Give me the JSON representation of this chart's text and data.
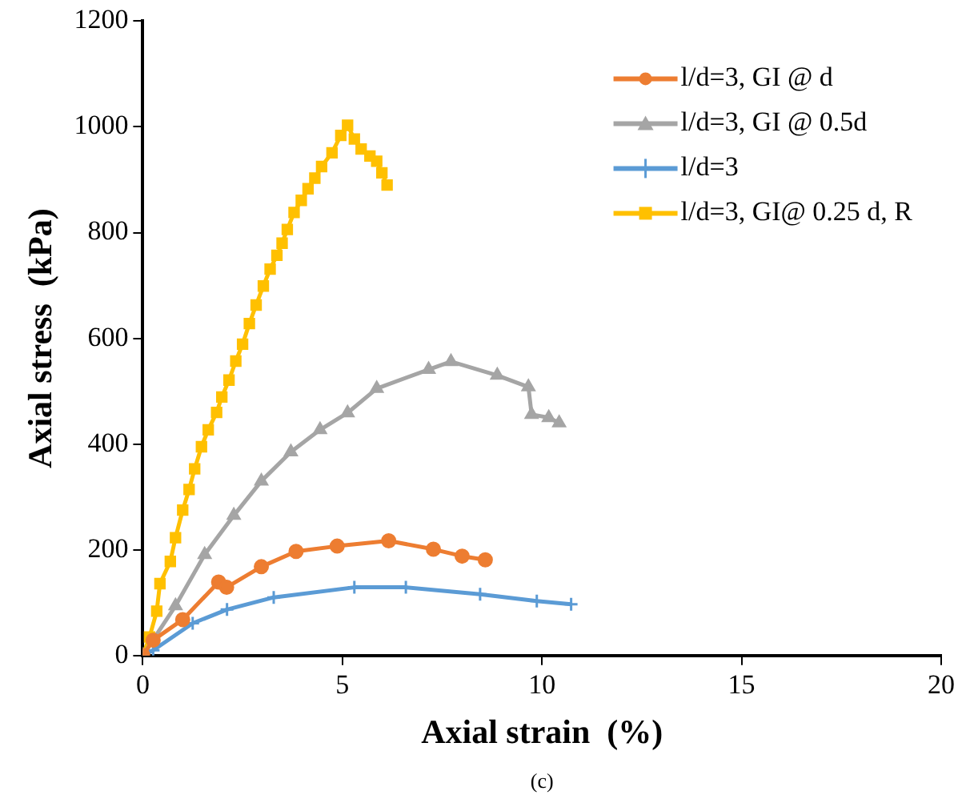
{
  "chart_data": {
    "type": "line",
    "xlabel": "Axial strain  (%)",
    "ylabel": "Axial stress  (kPa)",
    "annotations": [
      "(c)"
    ],
    "xlim": [
      0,
      20
    ],
    "xticks": [
      0,
      5,
      10,
      15,
      20
    ],
    "ylim": [
      0,
      1200
    ],
    "yticks": [
      0,
      200,
      400,
      600,
      800,
      1000,
      1200
    ],
    "grid": false,
    "legend": "top right",
    "series": [
      {
        "name": "l/d=3, GI @ d",
        "color": "#ed7d31",
        "marker": "circle",
        "x": [
          0,
          0.26,
          1.0,
          1.9,
          2.1,
          2.97,
          3.84,
          4.87,
          6.16,
          7.28,
          8.0,
          8.58
        ],
        "values": [
          0,
          29,
          68,
          139,
          129,
          168,
          197,
          207,
          217,
          201,
          188,
          181
        ]
      },
      {
        "name": "l/d=3, GI @ 0.5d",
        "color": "#a5a5a5",
        "marker": "triangle",
        "x": [
          0,
          0.82,
          1.55,
          2.28,
          2.97,
          3.71,
          4.44,
          5.13,
          5.86,
          7.16,
          7.72,
          8.88,
          9.66,
          9.74,
          10.17,
          10.43
        ],
        "values": [
          0,
          94,
          191,
          265,
          330,
          385,
          427,
          459,
          505,
          541,
          556,
          530,
          508,
          456,
          450,
          440
        ]
      },
      {
        "name": "l/d=3",
        "color": "#5b9bd5",
        "marker": "cross",
        "x": [
          0,
          0.26,
          1.25,
          2.11,
          3.28,
          5.3,
          6.59,
          8.45,
          9.87,
          10.73
        ],
        "values": [
          0,
          10,
          61,
          87,
          110,
          129,
          129,
          116,
          103,
          97
        ]
      },
      {
        "name": "l/d=3, GI@ 0.25 d, R",
        "color": "#ffc000",
        "marker": "square",
        "x": [
          0,
          0.17,
          0.35,
          0.43,
          0.69,
          0.82,
          1.0,
          1.16,
          1.3,
          1.47,
          1.64,
          1.85,
          1.98,
          2.16,
          2.33,
          2.5,
          2.67,
          2.84,
          3.02,
          3.19,
          3.36,
          3.49,
          3.62,
          3.79,
          3.97,
          4.14,
          4.31,
          4.48,
          4.74,
          4.96,
          5.13,
          5.3,
          5.47,
          5.69,
          5.86,
          5.99,
          6.12
        ],
        "values": [
          0,
          35,
          84,
          136,
          178,
          223,
          275,
          314,
          353,
          395,
          427,
          460,
          489,
          521,
          557,
          589,
          628,
          663,
          699,
          731,
          757,
          780,
          806,
          838,
          861,
          883,
          903,
          925,
          951,
          984,
          1003,
          977,
          958,
          945,
          935,
          913,
          890
        ]
      }
    ]
  }
}
